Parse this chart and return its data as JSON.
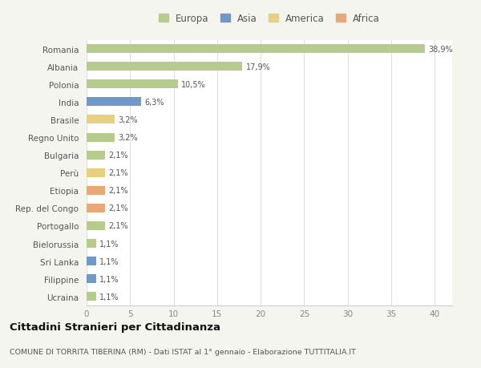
{
  "countries": [
    "Romania",
    "Albania",
    "Polonia",
    "India",
    "Brasile",
    "Regno Unito",
    "Bulgaria",
    "Perù",
    "Etiopia",
    "Rep. del Congo",
    "Portogallo",
    "Bielorussia",
    "Sri Lanka",
    "Filippine",
    "Ucraina"
  ],
  "values": [
    38.9,
    17.9,
    10.5,
    6.3,
    3.2,
    3.2,
    2.1,
    2.1,
    2.1,
    2.1,
    2.1,
    1.1,
    1.1,
    1.1,
    1.1
  ],
  "labels": [
    "38,9%",
    "17,9%",
    "10,5%",
    "6,3%",
    "3,2%",
    "3,2%",
    "2,1%",
    "2,1%",
    "2,1%",
    "2,1%",
    "2,1%",
    "1,1%",
    "1,1%",
    "1,1%",
    "1,1%"
  ],
  "colors": [
    "#b5cc8e",
    "#b5cc8e",
    "#b5cc8e",
    "#7098c8",
    "#e8d080",
    "#b5cc8e",
    "#b5cc8e",
    "#e8d080",
    "#e8a878",
    "#e8a878",
    "#b5cc8e",
    "#b5cc8e",
    "#7098c8",
    "#7098c8",
    "#b5cc8e"
  ],
  "legend": {
    "labels": [
      "Europa",
      "Asia",
      "America",
      "Africa"
    ],
    "colors": [
      "#b5cc8e",
      "#7098c8",
      "#e8d080",
      "#e8a878"
    ]
  },
  "title1": "Cittadini Stranieri per Cittadinanza",
  "title2": "COMUNE DI TORRITA TIBERINA (RM) - Dati ISTAT al 1° gennaio - Elaborazione TUTTITALIA.IT",
  "xlim": [
    0,
    42
  ],
  "background_color": "#f5f5f0",
  "plot_background": "#ffffff",
  "bar_height": 0.5
}
